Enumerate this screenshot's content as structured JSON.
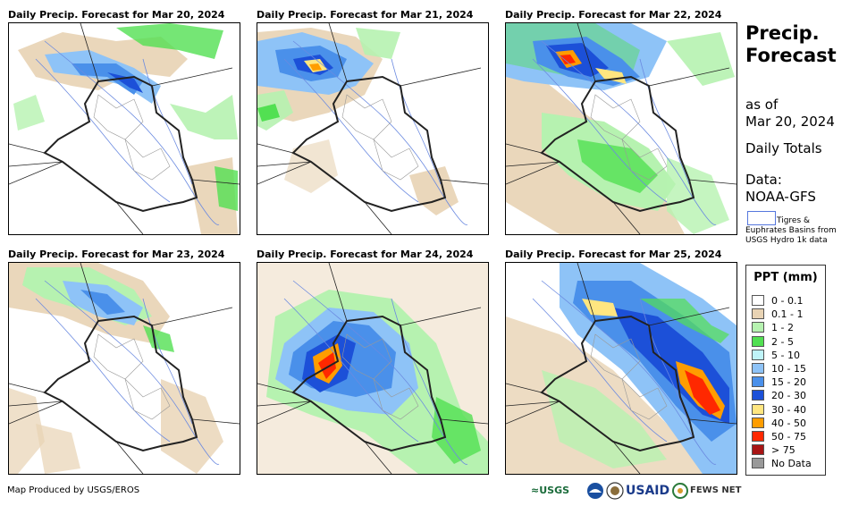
{
  "panels": [
    {
      "title": "Daily Precip. Forecast for Mar 20, 2024"
    },
    {
      "title": "Daily Precip. Forecast for Mar 21, 2024"
    },
    {
      "title": "Daily Precip. Forecast for Mar 22, 2024"
    },
    {
      "title": "Daily Precip. Forecast for Mar 23, 2024"
    },
    {
      "title": "Daily Precip. Forecast for Mar 24, 2024"
    },
    {
      "title": "Daily Precip. Forecast for Mar 25, 2024"
    }
  ],
  "sidebar": {
    "title_line1": "Precip.",
    "title_line2": "Forecast",
    "as_of_label": "as of",
    "date": "Mar 20, 2024",
    "totals": "Daily Totals",
    "data_label": "Data:",
    "data_source": "NOAA-GFS",
    "basin_line1": "Tigres &",
    "basin_line2": "Euphrates Basins from",
    "basin_line3": "USGS Hydro 1k data"
  },
  "legend": {
    "title": "PPT (mm)",
    "items": [
      {
        "label": "0 - 0.1",
        "color": "#ffffff"
      },
      {
        "label": "0.1 - 1",
        "color": "#e8d3b4"
      },
      {
        "label": "1 - 2",
        "color": "#b6f2b0"
      },
      {
        "label": "2 - 5",
        "color": "#52e052"
      },
      {
        "label": "5 - 10",
        "color": "#bff4f9"
      },
      {
        "label": "10 - 15",
        "color": "#8ec3f7"
      },
      {
        "label": "15 - 20",
        "color": "#4a90ea"
      },
      {
        "label": "20 - 30",
        "color": "#1c50d8"
      },
      {
        "label": "30 - 40",
        "color": "#ffe680"
      },
      {
        "label": "40 - 50",
        "color": "#ff9d00"
      },
      {
        "label": "50 - 75",
        "color": "#ff2800"
      },
      {
        "label": "> 75",
        "color": "#a81414"
      },
      {
        "label": "No Data",
        "color": "#999999"
      }
    ]
  },
  "footer": {
    "credit": "Map Produced by USGS/EROS"
  },
  "logos": {
    "usgs": "≈USGS",
    "usaid": "USAID",
    "fewsnet": "FEWS NET"
  }
}
